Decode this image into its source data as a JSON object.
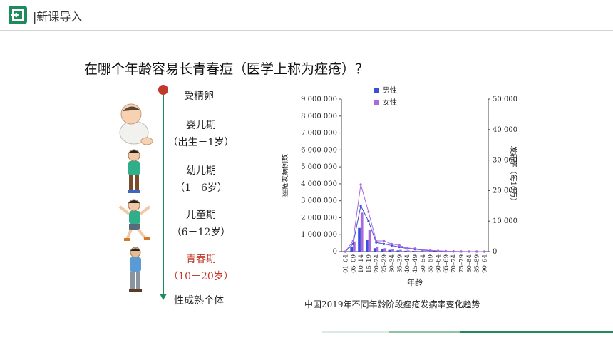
{
  "header": {
    "title": "|新课导入",
    "icon": "enter-icon",
    "accent": "#1f8a5b"
  },
  "question": "在哪个年龄容易长青春痘（医学上称为痤疮）？",
  "timeline": {
    "stages": [
      {
        "line1": "受精卵",
        "line2": ""
      },
      {
        "line1": "婴儿期",
        "line2": "（出生－1岁）"
      },
      {
        "line1": "幼儿期",
        "line2": "（1－6岁）"
      },
      {
        "line1": "儿童期",
        "line2": "（6－12岁）"
      },
      {
        "line1": "青春期",
        "line2": "（10－20岁）"
      },
      {
        "line1": "性成熟个体",
        "line2": ""
      }
    ],
    "highlight_color": "#c0392b"
  },
  "chart_data": {
    "type": "bar",
    "caption": "中国2019年不同年龄阶段痤疮发病率变化趋势",
    "xlabel": "年龄",
    "ylabel_left": "痤疮发病例数",
    "ylabel_right": "发病率（每10万）",
    "categories": [
      "01–04",
      "05–09",
      "10–14",
      "15–19",
      "20–24",
      "25–29",
      "30–34",
      "35–39",
      "40–44",
      "45–49",
      "50–54",
      "55–59",
      "60–64",
      "65–69",
      "70–74",
      "75–79",
      "80–84",
      "85–89",
      "90–94"
    ],
    "yticks_left": [
      "0",
      "1 000 000",
      "2 000 000",
      "3 000 000",
      "4 000 000",
      "5 000 000",
      "6 000 000",
      "7 000 000",
      "8 000 000",
      "9 000 000"
    ],
    "yticks_right": [
      "0",
      "10 000",
      "20 000",
      "30 000",
      "40 000",
      "50 000"
    ],
    "ylim_left": [
      0,
      9000000
    ],
    "ylim_right": [
      0,
      50000
    ],
    "series": [
      {
        "name": "男性",
        "color": "#3b4fd8",
        "values": [
          0,
          300000,
          1400000,
          700000,
          200000,
          150000,
          100000,
          70000,
          50000,
          40000,
          30000,
          20000,
          10000,
          5000,
          2000,
          1000,
          500,
          0,
          0
        ],
        "rate": [
          0,
          2500,
          15000,
          10000,
          3000,
          2500,
          2000,
          1500,
          1000,
          800,
          500,
          300,
          200,
          100,
          50,
          20,
          10,
          0,
          0
        ]
      },
      {
        "name": "女性",
        "color": "#a96ae0",
        "values": [
          0,
          600000,
          2300000,
          1300000,
          300000,
          200000,
          150000,
          100000,
          70000,
          50000,
          40000,
          30000,
          15000,
          8000,
          3000,
          1500,
          800,
          0,
          0
        ],
        "rate": [
          0,
          3500,
          22000,
          13000,
          3500,
          3500,
          2500,
          2000,
          1200,
          1000,
          600,
          400,
          250,
          150,
          60,
          30,
          15,
          0,
          0
        ]
      }
    ]
  }
}
